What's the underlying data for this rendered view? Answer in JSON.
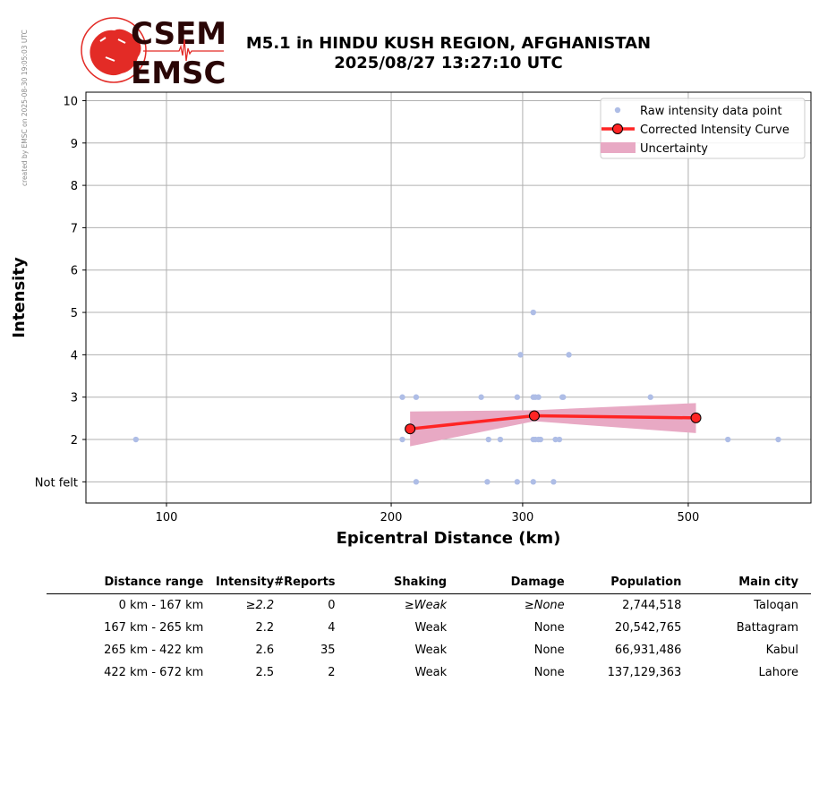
{
  "watermark": "created by EMSC on 2025-08-30 19:05:03 UTC",
  "logo": {
    "top": "CSEM",
    "bottom": "EMSC"
  },
  "title": {
    "line1": "M5.1 in HINDU KUSH REGION, AFGHANISTAN",
    "line2": "2025/08/27 13:27:10 UTC"
  },
  "colors": {
    "raw_points": "#aebde6",
    "curve": "#ff2424",
    "marker": "#ff2424",
    "uncertainty": "#e8a9c4",
    "grid": "#b0b0b0",
    "logo_red": "#e32b26",
    "logo_dark": "#2a0606"
  },
  "chart_data": {
    "type": "scatter",
    "xlabel": "Epicentral Distance (km)",
    "ylabel": "Intensity",
    "xscale": "log",
    "xlim": [
      78,
      730
    ],
    "ylim": [
      0.5,
      10.2
    ],
    "xticks": [
      100,
      200,
      300,
      500
    ],
    "yticks": [
      1,
      2,
      3,
      4,
      5,
      6,
      7,
      8,
      9,
      10
    ],
    "ytick_labels": [
      "Not felt",
      "2",
      "3",
      "4",
      "5",
      "6",
      "7",
      "8",
      "9",
      "10"
    ],
    "grid": true,
    "legend_position": "top-right",
    "legend": [
      "Raw intensity data point",
      "Corrected Intensity Curve",
      "Uncertainty"
    ],
    "series": [
      {
        "name": "Raw intensity data point",
        "kind": "points",
        "points": [
          [
            91,
            2
          ],
          [
            207,
            3
          ],
          [
            216,
            3
          ],
          [
            207,
            2
          ],
          [
            216,
            1
          ],
          [
            270,
            2
          ],
          [
            264,
            3
          ],
          [
            280,
            2
          ],
          [
            269,
            1
          ],
          [
            295,
            3
          ],
          [
            298,
            4
          ],
          [
            295,
            1
          ],
          [
            310,
            5
          ],
          [
            310,
            3
          ],
          [
            312,
            3
          ],
          [
            315,
            3
          ],
          [
            310,
            2
          ],
          [
            312,
            2
          ],
          [
            315,
            2
          ],
          [
            317,
            2
          ],
          [
            310,
            1
          ],
          [
            330,
            1
          ],
          [
            332,
            2
          ],
          [
            336,
            2
          ],
          [
            340,
            3
          ],
          [
            346,
            4
          ],
          [
            339,
            3
          ],
          [
            445,
            3
          ],
          [
            565,
            2
          ],
          [
            660,
            2
          ]
        ]
      },
      {
        "name": "Corrected Intensity Curve",
        "kind": "line",
        "points": [
          [
            212,
            2.25
          ],
          [
            311,
            2.56
          ],
          [
            512,
            2.51
          ]
        ]
      },
      {
        "name": "Uncertainty",
        "kind": "band",
        "upper": [
          [
            212,
            2.66
          ],
          [
            311,
            2.69
          ],
          [
            512,
            2.86
          ]
        ],
        "lower": [
          [
            212,
            1.84
          ],
          [
            311,
            2.43
          ],
          [
            512,
            2.15
          ]
        ]
      }
    ]
  },
  "table": {
    "headers": [
      "Distance range",
      "Intensity",
      "#Reports",
      "Shaking",
      "Damage",
      "Population",
      "Main city"
    ],
    "rows": [
      {
        "range": "0 km -  167 km",
        "intensity": "≥2.2",
        "reports": "0",
        "shaking": "≥Weak",
        "damage": "≥None",
        "population": "2,744,518",
        "city": "Taloqan",
        "italic": true
      },
      {
        "range": "167 km -  265 km",
        "intensity": "2.2",
        "reports": "4",
        "shaking": "Weak",
        "damage": "None",
        "population": "20,542,765",
        "city": "Battagram",
        "italic": false
      },
      {
        "range": "265 km -  422 km",
        "intensity": "2.6",
        "reports": "35",
        "shaking": "Weak",
        "damage": "None",
        "population": "66,931,486",
        "city": "Kabul",
        "italic": false
      },
      {
        "range": "422 km -  672 km",
        "intensity": "2.5",
        "reports": "2",
        "shaking": "Weak",
        "damage": "None",
        "population": "137,129,363",
        "city": "Lahore",
        "italic": false
      }
    ]
  }
}
